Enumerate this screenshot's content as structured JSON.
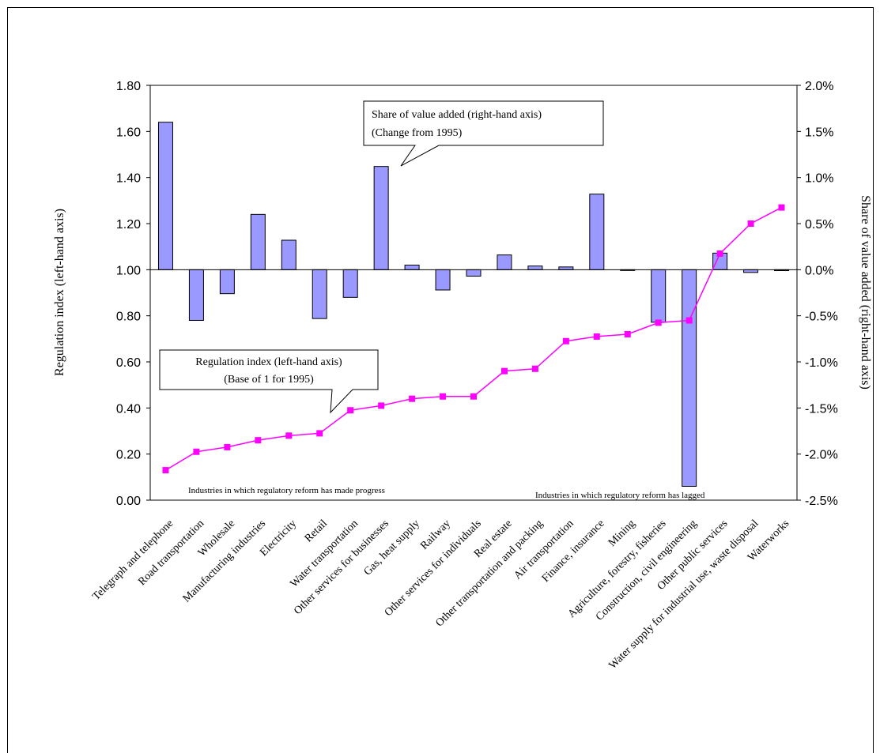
{
  "chart_data": {
    "type": "bar",
    "categories": [
      "Telegraph and telephone",
      "Road transportation",
      "Wholesale",
      "Manufacturing industries",
      "Electricity",
      "Retail",
      "Water transportation",
      "Other services for businesses",
      "Gas, heat supply",
      "Railway",
      "Other services for individuals",
      "Real estate",
      "Other transportation and packing",
      "Air transportation",
      "Finance, insurance",
      "Mining",
      "Agriculture, forestry, fisheries",
      "Construction, civil engineering",
      "Other public services",
      "Water supply for industrial use, waste disposal",
      "Waterworks"
    ],
    "series": [
      {
        "name": "Share of value added (right-hand axis)",
        "axis": "right",
        "kind": "bar",
        "color": "#9999ff",
        "values": [
          1.6,
          -0.55,
          -0.26,
          0.6,
          0.32,
          -0.53,
          -0.3,
          1.12,
          0.05,
          -0.22,
          -0.07,
          0.16,
          0.04,
          0.03,
          0.82,
          0.0,
          -0.57,
          -2.35,
          0.18,
          -0.03,
          -0.01
        ]
      },
      {
        "name": "Regulation index (left-hand axis)",
        "axis": "left",
        "kind": "line",
        "color": "#ff00ff",
        "values": [
          0.13,
          0.21,
          0.23,
          0.26,
          0.28,
          0.29,
          0.39,
          0.41,
          0.44,
          0.45,
          0.45,
          0.56,
          0.57,
          0.69,
          0.71,
          0.72,
          0.77,
          0.78,
          1.07,
          1.2,
          1.27
        ]
      }
    ],
    "left_axis": {
      "label": "Regulation index (left-hand axis)",
      "min": 0.0,
      "max": 1.8,
      "ticks": [
        "0.00",
        "0.20",
        "0.40",
        "0.60",
        "0.80",
        "1.00",
        "1.20",
        "1.40",
        "1.60",
        "1.80"
      ]
    },
    "right_axis": {
      "label": "Share of value added (right-hand axis)",
      "min": -2.5,
      "max": 2.0,
      "ticks": [
        "-2.5%",
        "-2.0%",
        "-1.5%",
        "-1.0%",
        "-0.5%",
        "0.0%",
        "0.5%",
        "1.0%",
        "1.5%",
        "2.0%"
      ]
    },
    "annotations": {
      "share_callout": [
        "Share of value added (right-hand axis)",
        "(Change from 1995)"
      ],
      "regulation_callout": [
        "Regulation index (left-hand axis)",
        "(Base of 1 for 1995)"
      ],
      "progress_note": "Industries in which regulatory reform has made progress",
      "lagged_note": "Industries in which regulatory reform has lagged"
    },
    "grid": false,
    "legend": "none"
  }
}
